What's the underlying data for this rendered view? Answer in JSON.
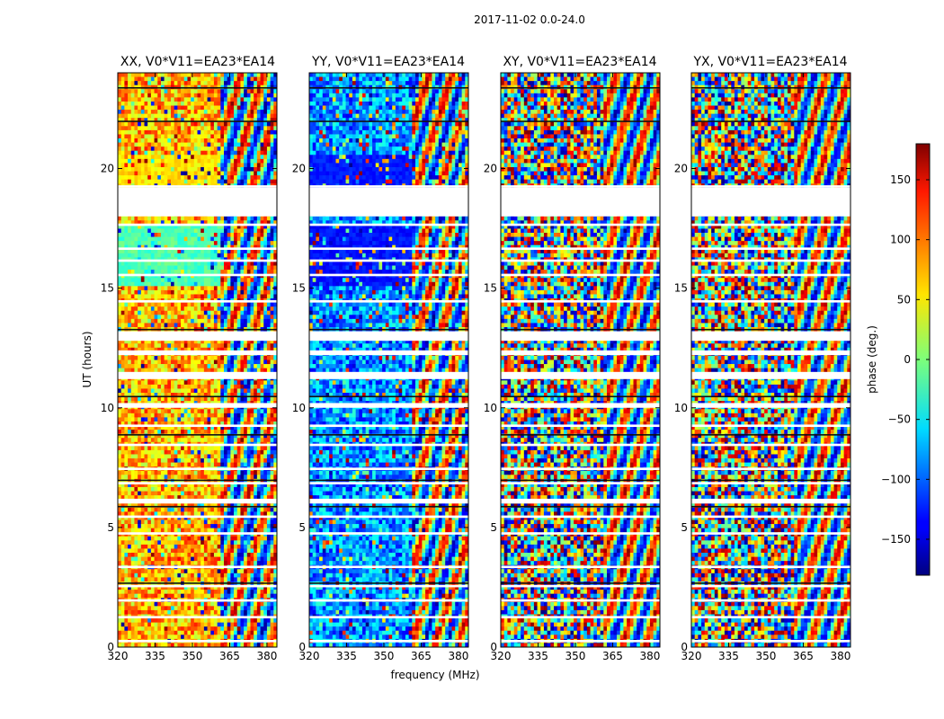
{
  "figure": {
    "suptitle": "2017-11-02 0.0-24.0"
  },
  "chart_data": [
    {
      "type": "heatmap",
      "title": "XX, V0*V11=EA23*EA14",
      "xlabel": "frequency (MHz)",
      "ylabel": "UT (hours)",
      "xlim": [
        320,
        384
      ],
      "ylim": [
        0,
        24
      ],
      "xticks": [
        320,
        335,
        350,
        365,
        380
      ],
      "yticks": [
        0,
        5,
        10,
        15,
        20
      ],
      "color_scheme": "warm",
      "rfi_split_mhz": 361
    },
    {
      "type": "heatmap",
      "title": "YY, V0*V11=EA23*EA14",
      "xlabel": "frequency (MHz)",
      "ylabel": "",
      "xlim": [
        320,
        384
      ],
      "ylim": [
        0,
        24
      ],
      "xticks": [
        320,
        335,
        350,
        365,
        380
      ],
      "yticks": [
        0,
        5,
        10,
        15,
        20
      ],
      "color_scheme": "cool",
      "rfi_split_mhz": 361
    },
    {
      "type": "heatmap",
      "title": "XY, V0*V11=EA23*EA14",
      "xlabel": "",
      "ylabel": "",
      "xlim": [
        320,
        384
      ],
      "ylim": [
        0,
        24
      ],
      "xticks": [
        320,
        335,
        350,
        365,
        380
      ],
      "yticks": [
        0,
        5,
        10,
        15,
        20
      ],
      "color_scheme": "noise",
      "rfi_split_mhz": 361
    },
    {
      "type": "heatmap",
      "title": "YX, V0*V11=EA23*EA14",
      "xlabel": "",
      "ylabel": "",
      "xlim": [
        320,
        384
      ],
      "ylim": [
        0,
        24
      ],
      "xticks": [
        320,
        335,
        350,
        365,
        380
      ],
      "yticks": [
        0,
        5,
        10,
        15,
        20
      ],
      "color_scheme": "noise",
      "rfi_split_mhz": 361
    }
  ],
  "colorbar": {
    "label": "phase (deg.)",
    "vmin": -180,
    "vmax": 180,
    "ticks": [
      150,
      100,
      50,
      0,
      -50,
      -100,
      -150
    ],
    "tick_labels": [
      "150",
      "100",
      "50",
      "0",
      "−50",
      "−100",
      "−150"
    ],
    "colormap": "jet"
  },
  "flagged_hours": [
    [
      19.2,
      19.3
    ],
    [
      18.0,
      19.2
    ],
    [
      17.6,
      17.7
    ],
    [
      16.6,
      16.7
    ],
    [
      16.1,
      16.2
    ],
    [
      15.5,
      15.6
    ],
    [
      14.4,
      14.5
    ],
    [
      12.8,
      13.2
    ],
    [
      12.2,
      12.4
    ],
    [
      11.2,
      11.5
    ],
    [
      10.0,
      10.2
    ],
    [
      9.2,
      9.3
    ],
    [
      8.4,
      8.5
    ],
    [
      7.4,
      7.5
    ],
    [
      6.8,
      6.9
    ],
    [
      6.0,
      6.2
    ],
    [
      5.4,
      5.5
    ],
    [
      4.7,
      4.8
    ],
    [
      3.3,
      3.4
    ],
    [
      2.5,
      2.6
    ],
    [
      1.9,
      2.0
    ],
    [
      1.2,
      1.3
    ],
    [
      0.2,
      0.3
    ]
  ]
}
